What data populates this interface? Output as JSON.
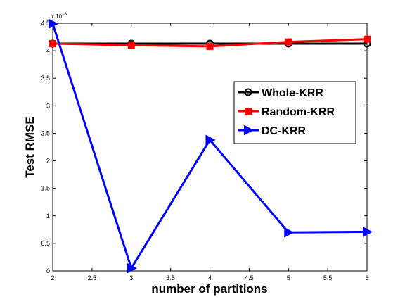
{
  "chart_data": {
    "type": "line",
    "xlabel": "number of partitions",
    "ylabel": "Test RMSE",
    "y_exponent_label": "x 10",
    "y_exponent_power": "−3",
    "xlim": [
      2,
      6
    ],
    "ylim": [
      0,
      0.0045
    ],
    "y_scale_factor": 0.001,
    "xticks": [
      2,
      2.5,
      3,
      3.5,
      4,
      4.5,
      5,
      5.5,
      6
    ],
    "xtick_labels": [
      "2",
      "2.5",
      "3",
      "3.5",
      "4",
      "4.5",
      "5",
      "5.5",
      "6"
    ],
    "yticks": [
      0,
      0.0005,
      0.001,
      0.0015,
      0.002,
      0.0025,
      0.003,
      0.0035,
      0.004,
      0.0045
    ],
    "ytick_labels": [
      "0",
      "0.5",
      "1",
      "1.5",
      "2",
      "2.5",
      "3",
      "3.5",
      "4",
      "4.5"
    ],
    "x": [
      2,
      3,
      4,
      5,
      6
    ],
    "grid": false,
    "legend_position": "right",
    "series": [
      {
        "name": "Whole-KRR",
        "color": "#000000",
        "marker": "circle",
        "values": [
          0.00413,
          0.00413,
          0.00413,
          0.00413,
          0.00413
        ]
      },
      {
        "name": "Random-KRR",
        "color": "#ff0000",
        "marker": "square",
        "values": [
          0.00413,
          0.0041,
          0.00408,
          0.00416,
          0.00421
        ]
      },
      {
        "name": "DC-KRR",
        "color": "#0000ff",
        "marker": "triangle-right",
        "values": [
          0.00449,
          5e-05,
          0.00238,
          0.0007,
          0.00071
        ]
      }
    ]
  }
}
